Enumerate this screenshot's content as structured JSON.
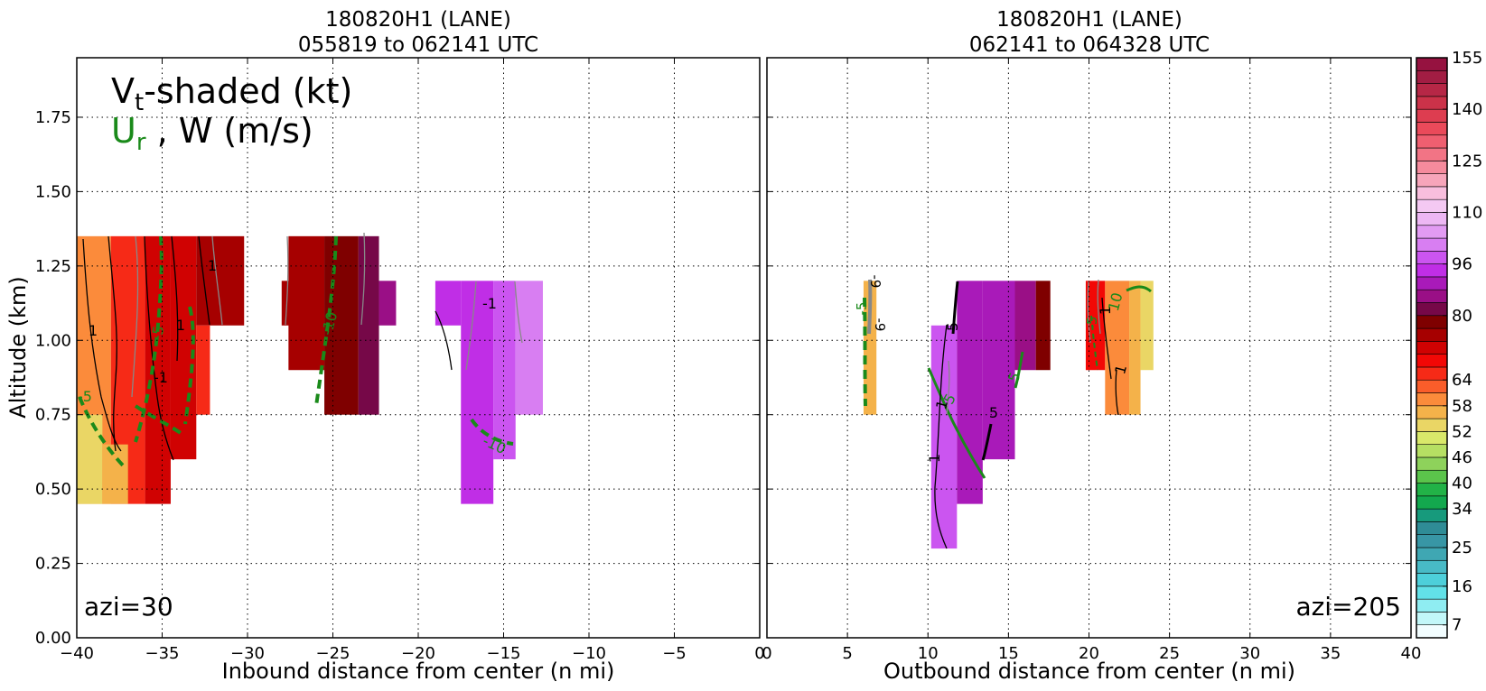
{
  "chart_data": [
    {
      "type": "contour",
      "title_line1": "180820H1 (LANE)",
      "title_line2": "055819 to 062141 UTC",
      "xlabel": "Inbound distance from center (n mi)",
      "ylabel": "Altitude (km)",
      "xlim": [
        -40,
        0
      ],
      "ylim": [
        0,
        1.95
      ],
      "x_ticks": [
        -40,
        -35,
        -30,
        -25,
        -20,
        -15,
        -10,
        -5,
        0
      ],
      "x_tick_labels": [
        "−40",
        "−35",
        "−30",
        "−25",
        "−20",
        "−15",
        "−10",
        "−5",
        "0"
      ],
      "y_ticks": [
        0,
        0.25,
        0.5,
        0.75,
        1.0,
        1.25,
        1.5,
        1.75
      ],
      "y_tick_labels": [
        "0.00",
        "0.25",
        "0.50",
        "0.75",
        "1.00",
        "1.25",
        "1.50",
        "1.75"
      ],
      "grid": true,
      "legend_text": {
        "line1_main": "V",
        "line1_sub": "t",
        "line1_rest": "-shaded (kt)",
        "line2_green": "U",
        "line2_sub": "r",
        "line2_rest": " , W (m/s)"
      },
      "azi_label": "azi=30",
      "cells": [
        {
          "x0": -40,
          "x1": -38,
          "y0": 0.45,
          "y1": 1.35,
          "v": 58
        },
        {
          "x0": -38,
          "x1": -36,
          "y0": 0.45,
          "y1": 1.35,
          "v": 64
        },
        {
          "x0": -36,
          "x1": -34.5,
          "y0": 0.45,
          "y1": 1.35,
          "v": 70
        },
        {
          "x0": -34.5,
          "x1": -33,
          "y0": 0.6,
          "y1": 1.35,
          "v": 70
        },
        {
          "x0": -33,
          "x1": -30.2,
          "y0": 1.05,
          "y1": 1.35,
          "v": 74
        },
        {
          "x0": -33,
          "x1": -32.2,
          "y0": 0.75,
          "y1": 1.05,
          "v": 64
        },
        {
          "x0": -40,
          "x1": -38.5,
          "y0": 0.45,
          "y1": 0.75,
          "v": 52
        },
        {
          "x0": -38.5,
          "x1": -37,
          "y0": 0.45,
          "y1": 0.65,
          "v": 56
        },
        {
          "x0": -28,
          "x1": -27,
          "y0": 1.05,
          "y1": 1.2,
          "v": 74
        },
        {
          "x0": -27.6,
          "x1": -25.5,
          "y0": 0.9,
          "y1": 1.35,
          "v": 74
        },
        {
          "x0": -25.5,
          "x1": -23.5,
          "y0": 0.75,
          "y1": 1.35,
          "v": 78
        },
        {
          "x0": -23.5,
          "x1": -22.3,
          "y0": 0.75,
          "y1": 1.35,
          "v": 80
        },
        {
          "x0": -22.3,
          "x1": -21.3,
          "y0": 1.05,
          "y1": 1.2,
          "v": 84
        },
        {
          "x0": -19,
          "x1": -17.5,
          "y0": 1.05,
          "y1": 1.2,
          "v": 93
        },
        {
          "x0": -17.5,
          "x1": -15.6,
          "y0": 0.45,
          "y1": 1.2,
          "v": 93
        },
        {
          "x0": -15.6,
          "x1": -14.3,
          "y0": 0.6,
          "y1": 1.2,
          "v": 96
        },
        {
          "x0": -14.3,
          "x1": -12.7,
          "y0": 0.75,
          "y1": 1.2,
          "v": 103
        }
      ],
      "contours": [
        {
          "label": "1",
          "color": "black"
        },
        {
          "label": "-1",
          "color": "black"
        },
        {
          "label": "-10",
          "color": "green"
        },
        {
          "label": "-5",
          "color": "green"
        },
        {
          "label": "-5",
          "color": "green"
        }
      ]
    },
    {
      "type": "contour",
      "title_line1": "180820H1 (LANE)",
      "title_line2": "062141 to 064328 UTC",
      "xlabel": "Outbound distance from center (n mi)",
      "xlim": [
        0,
        40
      ],
      "ylim": [
        0,
        1.95
      ],
      "x_ticks": [
        0,
        5,
        10,
        15,
        20,
        25,
        30,
        35,
        40
      ],
      "x_tick_labels": [
        "0",
        "5",
        "10",
        "15",
        "20",
        "25",
        "30",
        "35",
        "40"
      ],
      "grid": true,
      "azi_label": "azi=205",
      "cells": [
        {
          "x0": 6.0,
          "x1": 6.8,
          "y0": 0.75,
          "y1": 1.2,
          "v": 55
        },
        {
          "x0": 10.2,
          "x1": 11.8,
          "y0": 0.3,
          "y1": 1.05,
          "v": 96
        },
        {
          "x0": 11.8,
          "x1": 13.4,
          "y0": 0.45,
          "y1": 1.2,
          "v": 90
        },
        {
          "x0": 13.4,
          "x1": 15.4,
          "y0": 0.6,
          "y1": 1.2,
          "v": 88
        },
        {
          "x0": 15.4,
          "x1": 16.7,
          "y0": 0.9,
          "y1": 1.2,
          "v": 86
        },
        {
          "x0": 16.7,
          "x1": 17.6,
          "y0": 0.9,
          "y1": 1.2,
          "v": 78
        },
        {
          "x0": 19.8,
          "x1": 21.0,
          "y0": 0.9,
          "y1": 1.2,
          "v": 68
        },
        {
          "x0": 21.0,
          "x1": 22.5,
          "y0": 0.75,
          "y1": 1.2,
          "v": 60
        },
        {
          "x0": 22.5,
          "x1": 23.2,
          "y0": 0.75,
          "y1": 1.2,
          "v": 56
        },
        {
          "x0": 23.2,
          "x1": 24.0,
          "y0": 0.9,
          "y1": 1.2,
          "v": 52
        }
      ],
      "contours": [
        {
          "label": "-5",
          "color": "green"
        },
        {
          "label": "-9",
          "color": "black"
        },
        {
          "label": "5",
          "color": "green"
        },
        {
          "label": "5",
          "color": "black"
        },
        {
          "label": "1",
          "color": "black"
        },
        {
          "label": "10",
          "color": "green"
        },
        {
          "label": "-5",
          "color": "green"
        }
      ]
    }
  ],
  "colorbar": {
    "levels": [
      4,
      7,
      10,
      13,
      16,
      19,
      22,
      25,
      28,
      31,
      34,
      37,
      40,
      43,
      46,
      49,
      52,
      55,
      58,
      61,
      64,
      67,
      70,
      73,
      76,
      80,
      84,
      88,
      92,
      96,
      100,
      104,
      108,
      110,
      114,
      118,
      122,
      125,
      129,
      133,
      137,
      140,
      144,
      148,
      152,
      155,
      158
    ],
    "colors": [
      "#f2fdff",
      "#c2f7f9",
      "#8fedf2",
      "#62e1e8",
      "#4dcfda",
      "#48bac6",
      "#3fa7b3",
      "#3896a5",
      "#2f8c96",
      "#179a7c",
      "#13a84e",
      "#22b247",
      "#5bc44b",
      "#8ed25b",
      "#b6df63",
      "#d9e86a",
      "#ead665",
      "#f4b24a",
      "#fb8b3b",
      "#fa5d2a",
      "#f62a17",
      "#f20806",
      "#d00202",
      "#a60000",
      "#7f0000",
      "#760848",
      "#9a0f86",
      "#a91ab9",
      "#c02ee6",
      "#cb55f0",
      "#d87ef2",
      "#e29bf3",
      "#edb7f4",
      "#f4c9f3",
      "#f8bedd",
      "#f7a5ba",
      "#f58b9d",
      "#f27485",
      "#ef5f70",
      "#ea4a5a",
      "#dd3d50",
      "#cb3249",
      "#b62746",
      "#a21d43",
      "#961240"
    ],
    "tick_labels": [
      "7",
      "16",
      "25",
      "34",
      "40",
      "46",
      "52",
      "58",
      "64",
      "80",
      "96",
      "110",
      "125",
      "140",
      "155"
    ],
    "tick_values": [
      7,
      16,
      25,
      34,
      40,
      46,
      52,
      58,
      64,
      80,
      96,
      110,
      125,
      140,
      155
    ]
  }
}
